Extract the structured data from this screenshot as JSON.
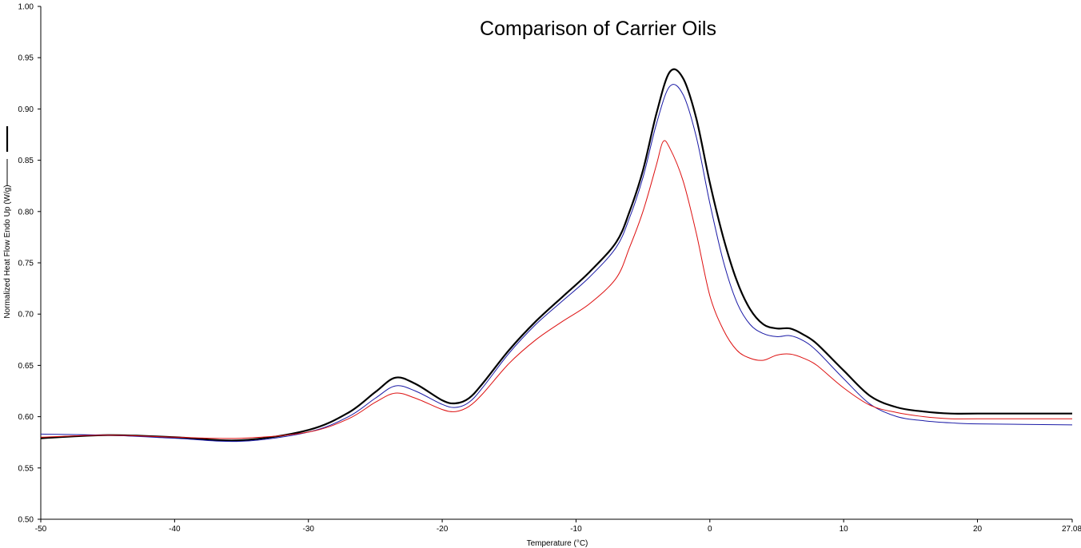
{
  "chart_data": {
    "type": "line",
    "title": "Comparison of Carrier Oils",
    "xlabel": "Temperature (°C)",
    "ylabel": "Normalized Heat Flow Endo Up (W/g)",
    "xlim": [
      -50,
      27.08
    ],
    "ylim": [
      0.5,
      1.0
    ],
    "x_ticks": [
      "-50",
      "-40",
      "-30",
      "-20",
      "-10",
      "0",
      "10",
      "20",
      "27.08"
    ],
    "x_tick_values": [
      -50,
      -40,
      -30,
      -20,
      -10,
      0,
      10,
      20,
      27.08
    ],
    "y_ticks": [
      "0.50",
      "0.55",
      "0.60",
      "0.65",
      "0.70",
      "0.75",
      "0.80",
      "0.85",
      "0.90",
      "0.95",
      "1.00"
    ],
    "y_tick_values": [
      0.5,
      0.55,
      0.6,
      0.65,
      0.7,
      0.75,
      0.8,
      0.85,
      0.9,
      0.95,
      1.0
    ],
    "grid": false,
    "legend": "left-axis line samples",
    "series": [
      {
        "color": "#000000",
        "x": [
          -50,
          -45,
          -40,
          -35,
          -30,
          -27,
          -25,
          -23.5,
          -22,
          -20,
          -19,
          -18,
          -17,
          -15,
          -13,
          -11,
          -9,
          -7,
          -6,
          -5,
          -4,
          -3,
          -2,
          -1,
          0,
          1,
          2,
          3,
          4,
          5,
          6,
          7,
          8,
          10,
          12,
          14,
          16,
          18,
          20,
          27.08
        ],
        "y": [
          0.579,
          0.582,
          0.58,
          0.577,
          0.587,
          0.604,
          0.624,
          0.638,
          0.632,
          0.616,
          0.613,
          0.618,
          0.632,
          0.665,
          0.693,
          0.717,
          0.741,
          0.77,
          0.8,
          0.84,
          0.895,
          0.936,
          0.93,
          0.89,
          0.828,
          0.775,
          0.733,
          0.705,
          0.69,
          0.686,
          0.686,
          0.68,
          0.671,
          0.645,
          0.62,
          0.609,
          0.605,
          0.603,
          0.603,
          0.603
        ]
      },
      {
        "color": "#1a1aa6",
        "x": [
          -50,
          -45,
          -40,
          -35,
          -30,
          -27,
          -25,
          -23.5,
          -22,
          -20,
          -19,
          -18,
          -17,
          -15,
          -13,
          -11,
          -9,
          -7,
          -6,
          -5,
          -4,
          -3,
          -2,
          -1,
          0,
          1,
          2,
          3,
          4,
          5,
          6,
          7,
          8,
          10,
          12,
          14,
          16,
          18,
          20,
          27.08
        ],
        "y": [
          0.583,
          0.582,
          0.579,
          0.576,
          0.585,
          0.6,
          0.618,
          0.63,
          0.625,
          0.612,
          0.609,
          0.614,
          0.628,
          0.662,
          0.69,
          0.713,
          0.736,
          0.765,
          0.794,
          0.833,
          0.885,
          0.922,
          0.914,
          0.872,
          0.808,
          0.752,
          0.712,
          0.69,
          0.681,
          0.678,
          0.679,
          0.674,
          0.664,
          0.637,
          0.612,
          0.6,
          0.596,
          0.594,
          0.593,
          0.592
        ]
      },
      {
        "color": "#dd1111",
        "x": [
          -50,
          -45,
          -40,
          -35,
          -30,
          -27,
          -25,
          -23.5,
          -22,
          -20,
          -19,
          -18,
          -17,
          -15,
          -13,
          -11,
          -9,
          -7,
          -6,
          -5,
          -4,
          -3.5,
          -3,
          -2,
          -1,
          0,
          1,
          2,
          3,
          4,
          5,
          6,
          7,
          8,
          10,
          12,
          14,
          16,
          18,
          20,
          27.08
        ],
        "y": [
          0.58,
          0.582,
          0.58,
          0.579,
          0.585,
          0.598,
          0.614,
          0.623,
          0.618,
          0.607,
          0.605,
          0.61,
          0.622,
          0.652,
          0.675,
          0.693,
          0.71,
          0.735,
          0.765,
          0.8,
          0.845,
          0.868,
          0.862,
          0.83,
          0.778,
          0.718,
          0.685,
          0.665,
          0.657,
          0.655,
          0.66,
          0.661,
          0.657,
          0.65,
          0.628,
          0.611,
          0.604,
          0.6,
          0.598,
          0.598,
          0.598
        ]
      }
    ]
  }
}
